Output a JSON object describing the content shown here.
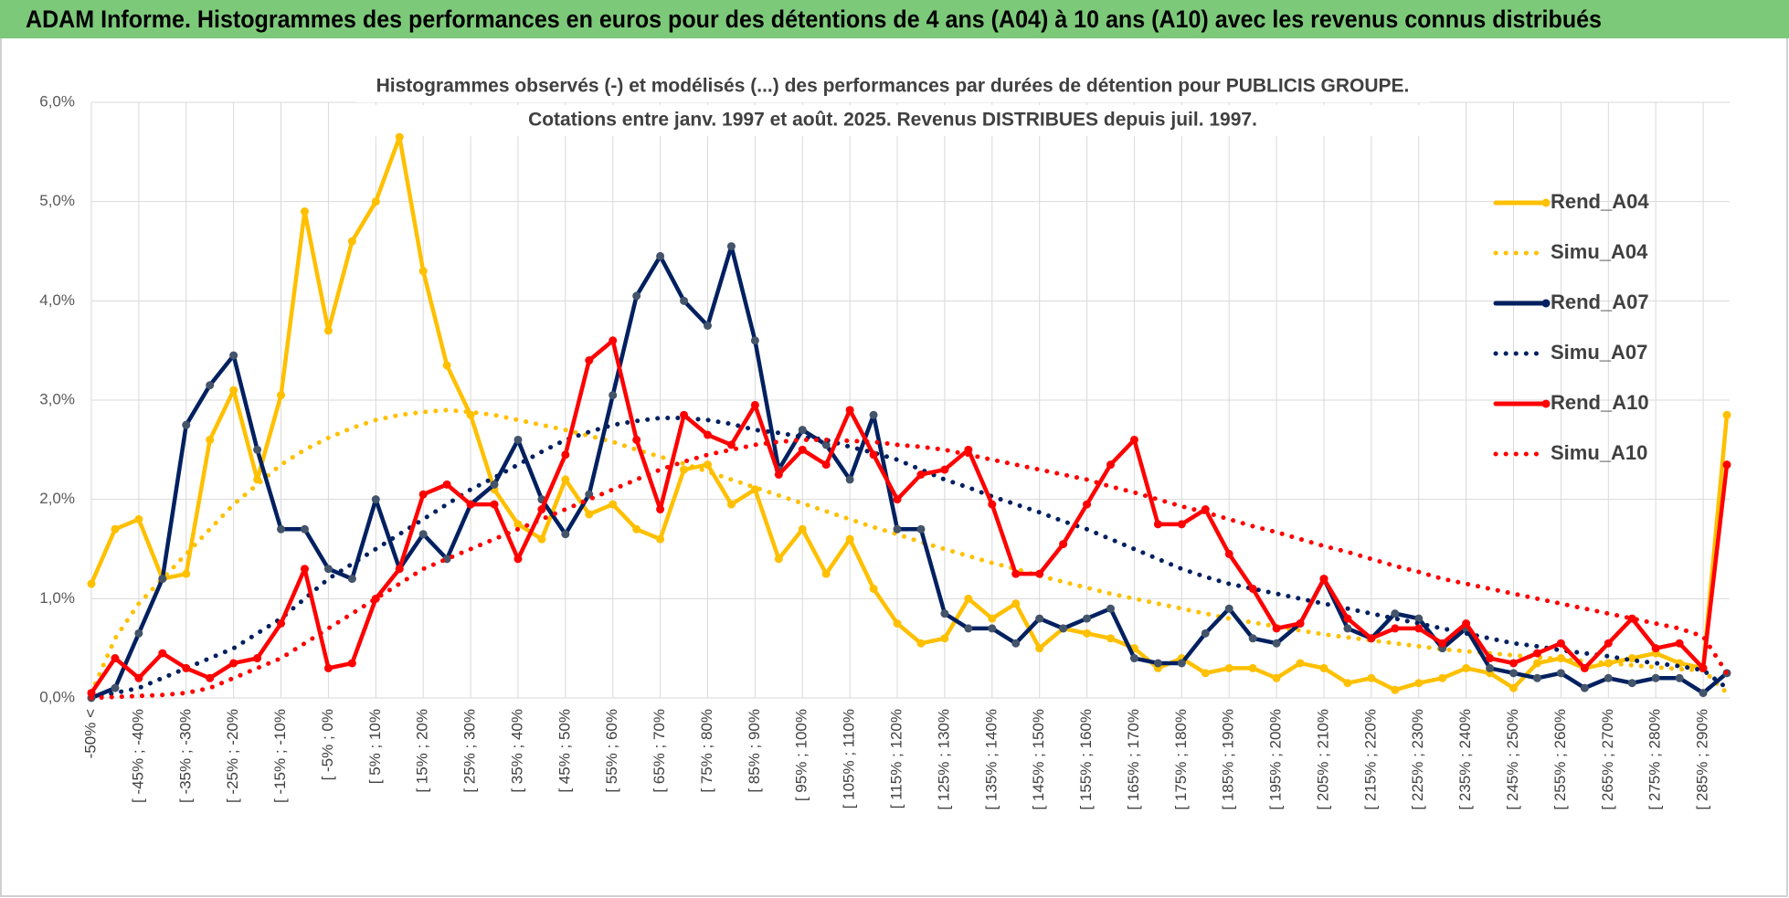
{
  "chart_data": {
    "type": "line",
    "title": "ADAM Informe. Histogrammes des performances en euros pour des détentions de 4 ans (A04) à 10 ans (A10) avec les revenus connus distribués",
    "subtitle": [
      "Histogrammes observés (-) et modélisés (...) des performances par durées de détention pour PUBLICIS GROUPE.",
      "Cotations entre janv. 1997 et août. 2025. Revenus DISTRIBUES depuis juil. 1997."
    ],
    "categories": [
      "-50% <",
      null,
      "[ -45% ; -40%",
      null,
      "[ -35% ; -30%",
      null,
      "[ -25% ; -20%",
      null,
      "[ -15% ; -10%",
      null,
      "[ -5% ; 0%",
      null,
      "[ 5% ; 10%",
      null,
      "[ 15% ; 20%",
      null,
      "[ 25% ; 30%",
      null,
      "[ 35% ; 40%",
      null,
      "[ 45% ; 50%",
      null,
      "[ 55% ; 60%",
      null,
      "[ 65% ; 70%",
      null,
      "[ 75% ; 80%",
      null,
      "[ 85% ; 90%",
      null,
      "[ 95% ; 100%",
      null,
      "[ 105% ; 110%",
      null,
      "[ 115% ; 120%",
      null,
      "[ 125% ; 130%",
      null,
      "[ 135% ; 140%",
      null,
      "[ 145% ; 150%",
      null,
      "[ 155% ; 160%",
      null,
      "[ 165% ; 170%",
      null,
      "[ 175% ; 180%",
      null,
      "[ 185% ; 190%",
      null,
      "[ 195% ; 200%",
      null,
      "[ 205% ; 210%",
      null,
      "[ 215% ; 220%",
      null,
      "[ 225% ; 230%",
      null,
      "[ 235% ; 240%",
      null,
      "[ 245% ; 250%",
      null,
      "[ 255% ; 260%",
      null,
      "[ 265% ; 270%",
      null,
      "[ 275% ; 280%",
      null,
      "[ 285% ; 290%",
      null
    ],
    "ylim": [
      0,
      6
    ],
    "yticks": [
      {
        "value": 0,
        "label": "0,0%"
      },
      {
        "value": 1,
        "label": "1,0%"
      },
      {
        "value": 2,
        "label": "2,0%"
      },
      {
        "value": 3,
        "label": "3,0%"
      },
      {
        "value": 4,
        "label": "4,0%"
      },
      {
        "value": 5,
        "label": "5,0%"
      },
      {
        "value": 6,
        "label": "6,0%"
      }
    ],
    "grid": true,
    "legend": "right",
    "series": [
      {
        "name": "Rend_A04",
        "color": "#ffc000",
        "style": "solid",
        "markers": true,
        "values": [
          1.15,
          1.7,
          1.8,
          1.2,
          1.25,
          2.6,
          3.1,
          2.2,
          3.05,
          4.9,
          3.7,
          4.6,
          5.0,
          5.65,
          4.3,
          3.35,
          2.85,
          2.1,
          1.75,
          1.6,
          2.2,
          1.85,
          1.95,
          1.7,
          1.6,
          2.3,
          2.35,
          1.95,
          2.1,
          1.4,
          1.7,
          1.25,
          1.6,
          1.1,
          0.75,
          0.55,
          0.6,
          1.0,
          0.8,
          0.95,
          0.5,
          0.7,
          0.65,
          0.6,
          0.5,
          0.3,
          0.4,
          0.25,
          0.3,
          0.3,
          0.2,
          0.35,
          0.3,
          0.15,
          0.2,
          0.08,
          0.15,
          0.2,
          0.3,
          0.25,
          0.1,
          0.35,
          0.4,
          0.3,
          0.35,
          0.4,
          0.45,
          0.35,
          0.3,
          2.85
        ]
      },
      {
        "name": "Simu_A04",
        "color": "#ffc000",
        "style": "dotted",
        "markers": false,
        "values": [
          0.05,
          0.6,
          0.95,
          1.2,
          1.45,
          1.7,
          1.95,
          2.15,
          2.35,
          2.5,
          2.62,
          2.72,
          2.8,
          2.85,
          2.88,
          2.9,
          2.88,
          2.85,
          2.8,
          2.75,
          2.7,
          2.64,
          2.58,
          2.5,
          2.43,
          2.36,
          2.28,
          2.2,
          2.12,
          2.04,
          1.96,
          1.88,
          1.8,
          1.72,
          1.65,
          1.57,
          1.5,
          1.43,
          1.36,
          1.3,
          1.23,
          1.17,
          1.11,
          1.05,
          1.0,
          0.95,
          0.9,
          0.85,
          0.8,
          0.76,
          0.72,
          0.68,
          0.64,
          0.61,
          0.58,
          0.55,
          0.52,
          0.49,
          0.47,
          0.45,
          0.43,
          0.41,
          0.39,
          0.37,
          0.35,
          0.33,
          0.31,
          0.29,
          0.28,
          0.05
        ]
      },
      {
        "name": "Rend_A07",
        "color": "#002060",
        "style": "solid",
        "markers": true,
        "values": [
          0,
          0.1,
          0.65,
          1.2,
          2.75,
          3.15,
          3.45,
          2.5,
          1.7,
          1.7,
          1.3,
          1.2,
          2.0,
          1.3,
          1.65,
          1.4,
          1.95,
          2.15,
          2.6,
          2.0,
          1.65,
          2.05,
          3.05,
          4.05,
          4.45,
          4.0,
          3.75,
          4.55,
          3.6,
          2.3,
          2.7,
          2.55,
          2.2,
          2.85,
          1.7,
          1.7,
          0.85,
          0.7,
          0.7,
          0.55,
          0.8,
          0.7,
          0.8,
          0.9,
          0.4,
          0.35,
          0.35,
          0.65,
          0.9,
          0.6,
          0.55,
          0.75,
          1.2,
          0.7,
          0.6,
          0.85,
          0.8,
          0.5,
          0.7,
          0.3,
          0.25,
          0.2,
          0.25,
          0.1,
          0.2,
          0.15,
          0.2,
          0.2,
          0.05,
          0.25
        ]
      },
      {
        "name": "Simu_A07",
        "color": "#002060",
        "style": "dotted",
        "markers": false,
        "values": [
          0.0,
          0.05,
          0.1,
          0.2,
          0.3,
          0.4,
          0.5,
          0.65,
          0.8,
          1.0,
          1.2,
          1.35,
          1.5,
          1.65,
          1.8,
          1.95,
          2.1,
          2.22,
          2.35,
          2.48,
          2.6,
          2.68,
          2.75,
          2.79,
          2.82,
          2.82,
          2.8,
          2.76,
          2.7,
          2.67,
          2.63,
          2.6,
          2.53,
          2.47,
          2.4,
          2.3,
          2.2,
          2.12,
          2.03,
          1.95,
          1.87,
          1.78,
          1.7,
          1.6,
          1.5,
          1.4,
          1.3,
          1.22,
          1.15,
          1.1,
          1.05,
          1.0,
          0.95,
          0.9,
          0.85,
          0.8,
          0.75,
          0.7,
          0.65,
          0.6,
          0.55,
          0.52,
          0.48,
          0.45,
          0.42,
          0.38,
          0.35,
          0.32,
          0.28,
          0.1
        ]
      },
      {
        "name": "Rend_A10",
        "color": "#ff0000",
        "style": "solid",
        "markers": true,
        "values": [
          0.05,
          0.4,
          0.2,
          0.45,
          0.3,
          0.2,
          0.35,
          0.4,
          0.75,
          1.3,
          0.3,
          0.35,
          1.0,
          1.3,
          2.05,
          2.15,
          1.95,
          1.95,
          1.4,
          1.9,
          2.45,
          3.4,
          3.6,
          2.6,
          1.9,
          2.85,
          2.65,
          2.55,
          2.95,
          2.25,
          2.5,
          2.35,
          2.9,
          2.45,
          2.0,
          2.25,
          2.3,
          2.5,
          1.95,
          1.25,
          1.25,
          1.55,
          1.95,
          2.35,
          2.6,
          1.75,
          1.75,
          1.9,
          1.45,
          1.1,
          0.7,
          0.75,
          1.2,
          0.8,
          0.6,
          0.7,
          0.7,
          0.55,
          0.75,
          0.4,
          0.35,
          0.45,
          0.55,
          0.3,
          0.55,
          0.8,
          0.5,
          0.55,
          0.3,
          2.35
        ]
      },
      {
        "name": "Simu_A10",
        "color": "#ff0000",
        "style": "dotted",
        "markers": false,
        "values": [
          0.0,
          0.01,
          0.02,
          0.03,
          0.05,
          0.1,
          0.2,
          0.3,
          0.4,
          0.55,
          0.7,
          0.85,
          1.0,
          1.15,
          1.3,
          1.4,
          1.5,
          1.6,
          1.7,
          1.8,
          1.9,
          2.0,
          2.1,
          2.2,
          2.3,
          2.38,
          2.45,
          2.5,
          2.55,
          2.58,
          2.6,
          2.6,
          2.59,
          2.58,
          2.55,
          2.53,
          2.5,
          2.45,
          2.4,
          2.35,
          2.3,
          2.25,
          2.2,
          2.13,
          2.07,
          2.0,
          1.93,
          1.87,
          1.8,
          1.73,
          1.67,
          1.6,
          1.53,
          1.47,
          1.4,
          1.33,
          1.27,
          1.2,
          1.15,
          1.1,
          1.05,
          1.0,
          0.95,
          0.9,
          0.85,
          0.8,
          0.75,
          0.7,
          0.62,
          0.25
        ]
      }
    ]
  }
}
